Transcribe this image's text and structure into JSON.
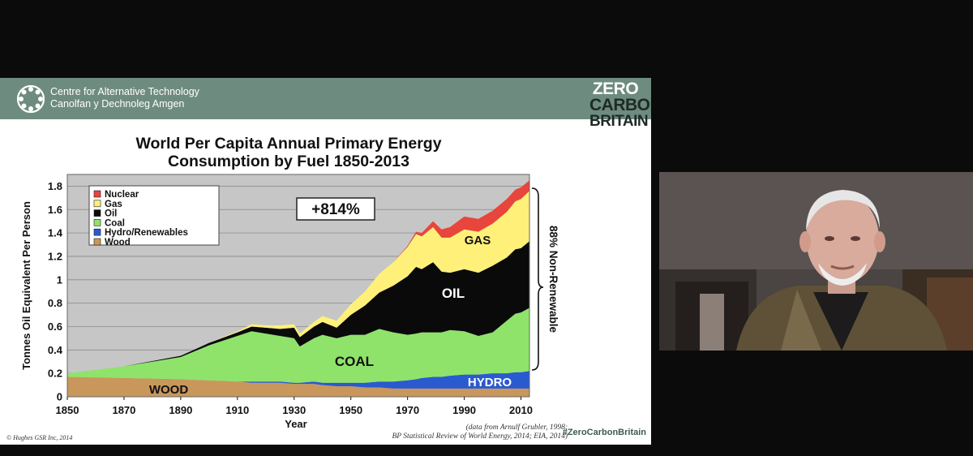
{
  "slide": {
    "organisation": {
      "line1": "Centre for Alternative Technology",
      "line2": "Canolfan y Dechnoleg Amgen"
    },
    "brand": {
      "line1": "ZERO",
      "line2": "CARBON",
      "line3": "BRITAIN"
    },
    "title_line1": "World Per Capita Annual Primary Energy",
    "title_line2": "Consumption by Fuel  1850-2013",
    "copyright": "©  Hughes GSR Inc, 2014",
    "source_line1": "(data from Arnulf Grubler, 1998;",
    "source_line2": "BP Statistical Review of World Energy, 2014; EIA, 2014)",
    "hashtag": "#ZeroCarbonBritain"
  },
  "chart_data": {
    "type": "area",
    "stacked": true,
    "ylabel": "Tonnes Oil Equivalent Per Person",
    "xlabel": "Year",
    "xlim": [
      1850,
      2013
    ],
    "ylim": [
      0,
      1.9
    ],
    "x_ticks": [
      "1850",
      "1870",
      "1890",
      "1910",
      "1930",
      "1950",
      "1970",
      "1990",
      "2010"
    ],
    "y_ticks": [
      "0",
      "0.2",
      "0.4",
      "0.6",
      "0.8",
      "1",
      "1.2",
      "1.4",
      "1.6",
      "1.8"
    ],
    "grid": true,
    "legend_position": "top-left",
    "legend": [
      "Nuclear",
      "Gas",
      "Oil",
      "Coal",
      "Hydro/Renewables",
      "Wood"
    ],
    "x": [
      1850,
      1870,
      1890,
      1900,
      1910,
      1915,
      1920,
      1925,
      1930,
      1932,
      1937,
      1940,
      1945,
      1950,
      1955,
      1960,
      1965,
      1970,
      1973,
      1975,
      1979,
      1982,
      1985,
      1990,
      1995,
      2000,
      2005,
      2008,
      2010,
      2013
    ],
    "series": [
      {
        "name": "Wood",
        "color": "#c9975b",
        "values": [
          0.17,
          0.16,
          0.15,
          0.14,
          0.13,
          0.12,
          0.12,
          0.12,
          0.11,
          0.11,
          0.11,
          0.1,
          0.09,
          0.09,
          0.08,
          0.08,
          0.07,
          0.07,
          0.07,
          0.07,
          0.07,
          0.07,
          0.07,
          0.07,
          0.07,
          0.07,
          0.07,
          0.07,
          0.07,
          0.07
        ]
      },
      {
        "name": "Hydro/Renewables",
        "color": "#2a5ad0",
        "values": [
          0.0,
          0.0,
          0.0,
          0.0,
          0.0,
          0.01,
          0.01,
          0.01,
          0.01,
          0.01,
          0.02,
          0.02,
          0.03,
          0.03,
          0.04,
          0.05,
          0.06,
          0.07,
          0.08,
          0.09,
          0.1,
          0.1,
          0.11,
          0.12,
          0.12,
          0.13,
          0.13,
          0.14,
          0.14,
          0.15
        ]
      },
      {
        "name": "Coal",
        "color": "#8fe36a",
        "values": [
          0.03,
          0.1,
          0.19,
          0.3,
          0.39,
          0.43,
          0.41,
          0.39,
          0.38,
          0.31,
          0.37,
          0.41,
          0.38,
          0.41,
          0.41,
          0.45,
          0.42,
          0.39,
          0.39,
          0.39,
          0.38,
          0.38,
          0.39,
          0.37,
          0.33,
          0.35,
          0.45,
          0.5,
          0.51,
          0.54
        ]
      },
      {
        "name": "Oil",
        "color": "#0a0a0a",
        "values": [
          0.0,
          0.0,
          0.01,
          0.02,
          0.03,
          0.04,
          0.05,
          0.06,
          0.09,
          0.08,
          0.1,
          0.11,
          0.09,
          0.17,
          0.25,
          0.31,
          0.4,
          0.5,
          0.57,
          0.54,
          0.6,
          0.52,
          0.49,
          0.53,
          0.54,
          0.57,
          0.54,
          0.55,
          0.55,
          0.57
        ]
      },
      {
        "name": "Gas",
        "color": "#fff07a",
        "values": [
          0.0,
          0.0,
          0.0,
          0.0,
          0.01,
          0.02,
          0.02,
          0.03,
          0.03,
          0.03,
          0.04,
          0.05,
          0.06,
          0.09,
          0.12,
          0.16,
          0.2,
          0.25,
          0.28,
          0.28,
          0.3,
          0.29,
          0.3,
          0.34,
          0.35,
          0.36,
          0.39,
          0.41,
          0.42,
          0.43
        ]
      },
      {
        "name": "Nuclear",
        "color": "#e8453c",
        "values": [
          0,
          0,
          0,
          0,
          0,
          0,
          0,
          0,
          0,
          0,
          0,
          0,
          0,
          0,
          0,
          0,
          0.0,
          0.01,
          0.02,
          0.03,
          0.05,
          0.07,
          0.09,
          0.11,
          0.11,
          0.11,
          0.11,
          0.1,
          0.1,
          0.09
        ]
      }
    ],
    "annotations": {
      "growth": "+814%",
      "bracket": "88% Non-Renewable",
      "labels": [
        "GAS",
        "OIL",
        "COAL",
        "HYDRO",
        "WOOD"
      ]
    }
  },
  "video": {
    "speaker_present": true
  }
}
